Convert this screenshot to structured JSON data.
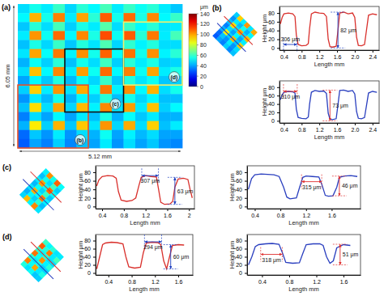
{
  "chart_data": [
    {
      "type": "heatmap",
      "panel": "(a)",
      "width_label": "5.12 mm",
      "height_label": "6.05 mm",
      "cells": [
        [
          48,
          55,
          50,
          60,
          47,
          58,
          52,
          62,
          50,
          60,
          54,
          58,
          50,
          45
        ],
        [
          52,
          98,
          55,
          105,
          50,
          100,
          58,
          110,
          55,
          108,
          56,
          104,
          52,
          60
        ],
        [
          45,
          58,
          48,
          62,
          46,
          56,
          50,
          64,
          48,
          60,
          52,
          58,
          49,
          50
        ],
        [
          50,
          102,
          54,
          108,
          52,
          104,
          56,
          112,
          54,
          110,
          58,
          106,
          50,
          62
        ],
        [
          44,
          56,
          47,
          60,
          45,
          57,
          49,
          63,
          47,
          59,
          51,
          57,
          48,
          48
        ],
        [
          49,
          100,
          53,
          106,
          51,
          103,
          55,
          109,
          53,
          107,
          55,
          103,
          51,
          58
        ],
        [
          42,
          54,
          46,
          58,
          44,
          55,
          48,
          61,
          46,
          58,
          50,
          56,
          46,
          47
        ],
        [
          48,
          96,
          52,
          104,
          50,
          101,
          54,
          108,
          52,
          105,
          54,
          100,
          50,
          56
        ],
        [
          40,
          52,
          45,
          57,
          43,
          54,
          47,
          60,
          45,
          57,
          49,
          54,
          45,
          46
        ],
        [
          46,
          94,
          50,
          102,
          49,
          99,
          53,
          106,
          51,
          103,
          52,
          98,
          48,
          55
        ],
        [
          38,
          50,
          43,
          55,
          42,
          52,
          46,
          58,
          44,
          55,
          47,
          52,
          44,
          44
        ],
        [
          44,
          92,
          48,
          100,
          47,
          97,
          51,
          104,
          49,
          101,
          50,
          96,
          46,
          52
        ],
        [
          35,
          48,
          40,
          52,
          40,
          50,
          44,
          56,
          42,
          53,
          45,
          50,
          42,
          42
        ],
        [
          42,
          90,
          46,
          98,
          45,
          95,
          49,
          102,
          47,
          99,
          48,
          94,
          44,
          50
        ],
        [
          32,
          45,
          38,
          50,
          38,
          48,
          42,
          54,
          40,
          51,
          43,
          48,
          40,
          40
        ],
        [
          30,
          40,
          35,
          46,
          36,
          44,
          40,
          50,
          38,
          48,
          40,
          45,
          38,
          36
        ]
      ],
      "colorbar": {
        "range": [
          0,
          140
        ],
        "ticks": [
          0,
          20,
          40,
          60,
          80,
          100,
          120,
          140
        ],
        "unit": "μm"
      },
      "regions": [
        {
          "label": "(b)",
          "cols": [
            0,
            5
          ],
          "rows": [
            9,
            15
          ],
          "color": "#e8502a"
        },
        {
          "label": "(c)",
          "cols": [
            4,
            8
          ],
          "rows": [
            5,
            11
          ],
          "color": "#111111"
        },
        {
          "label": "(d)",
          "cols": [
            9,
            13
          ],
          "rows": [
            2,
            8
          ],
          "color": "#f2ee6a"
        }
      ]
    },
    {
      "type": "line",
      "panel": "(b)",
      "x_label": "Length mm",
      "y_label": "Height μm",
      "color": "#d9302c",
      "xlim": [
        0.3,
        2.55
      ],
      "xticks": [
        0.4,
        0.8,
        1.2,
        1.6,
        {
          "value": 2,
          "label": "2.0"
        },
        2.4
      ],
      "ylim": [
        -5,
        95
      ],
      "yticks": [
        0,
        20,
        40,
        60,
        80
      ],
      "x": [
        0.32,
        0.36,
        0.4,
        0.5,
        0.6,
        0.65,
        0.68,
        0.72,
        0.8,
        0.9,
        0.95,
        0.98,
        1.02,
        1.1,
        1.2,
        1.3,
        1.36,
        1.4,
        1.44,
        1.5,
        1.58,
        1.62,
        1.66,
        1.75,
        1.85,
        1.95,
        2.0,
        2.04,
        2.08,
        2.15,
        2.22,
        2.27,
        2.31,
        2.4,
        2.5
      ],
      "values": [
        55,
        70,
        78,
        80,
        78,
        72,
        30,
        8,
        5,
        6,
        10,
        45,
        78,
        82,
        80,
        79,
        72,
        20,
        3,
        2,
        4,
        40,
        80,
        82,
        78,
        80,
        70,
        25,
        6,
        5,
        8,
        45,
        75,
        78,
        76
      ],
      "annotations": [
        {
          "text": "306 μm",
          "x": [
            0.39,
            0.696
          ],
          "y": 8,
          "color": "#2040c0"
        },
        {
          "text": "82 μm",
          "x": 1.62,
          "y": [
            0,
            82
          ],
          "color": "#2040c0"
        }
      ]
    },
    {
      "type": "line",
      "x_label": "Length mm",
      "y_label": "Height μm",
      "color": "#2a3fbf",
      "xlim": [
        0.3,
        2.55
      ],
      "xticks": [
        0.4,
        0.8,
        1.2,
        1.6,
        {
          "value": 2,
          "label": "2.0"
        },
        2.4
      ],
      "ylim": [
        -5,
        95
      ],
      "yticks": [
        0,
        20,
        40,
        60,
        80
      ],
      "x": [
        0.32,
        0.36,
        0.4,
        0.5,
        0.6,
        0.65,
        0.68,
        0.72,
        0.8,
        0.9,
        0.95,
        0.98,
        1.02,
        1.1,
        1.2,
        1.3,
        1.36,
        1.4,
        1.44,
        1.5,
        1.58,
        1.62,
        1.66,
        1.75,
        1.85,
        1.95,
        2.0,
        2.04,
        2.08,
        2.15,
        2.22,
        2.27,
        2.31,
        2.4,
        2.5
      ],
      "values": [
        50,
        62,
        68,
        70,
        69,
        66,
        28,
        8,
        6,
        5,
        9,
        40,
        68,
        72,
        70,
        71,
        65,
        18,
        4,
        3,
        5,
        38,
        72,
        73,
        70,
        72,
        64,
        22,
        6,
        5,
        8,
        40,
        66,
        70,
        68
      ],
      "annotations": [
        {
          "text": "310 μm",
          "x": [
            0.39,
            0.7
          ],
          "y": 70,
          "color": "#e03030"
        },
        {
          "text": "73 μm",
          "x": 1.44,
          "y": [
            0,
            73
          ],
          "color": "#e03030"
        }
      ]
    },
    {
      "type": "line",
      "panel": "(c)",
      "x_label": "Length mm",
      "y_label": "Height μm",
      "color": "#d9302c",
      "xlim": [
        0.28,
        2.1
      ],
      "xticks": [
        0.4,
        0.8,
        1.2,
        1.6,
        2
      ],
      "ylim": [
        -5,
        95
      ],
      "yticks": [
        0,
        20,
        40,
        60,
        80
      ],
      "x": [
        0.3,
        0.34,
        0.4,
        0.5,
        0.6,
        0.66,
        0.7,
        0.75,
        0.85,
        0.95,
        1.02,
        1.08,
        1.12,
        1.2,
        1.3,
        1.4,
        1.44,
        1.48,
        1.55,
        1.65,
        1.7,
        1.74,
        1.8,
        1.9,
        1.98,
        2.02,
        2.06
      ],
      "values": [
        48,
        62,
        70,
        72,
        71,
        66,
        35,
        15,
        12,
        14,
        20,
        50,
        68,
        72,
        70,
        69,
        40,
        10,
        5,
        6,
        12,
        45,
        64,
        66,
        63,
        40,
        20
      ],
      "annotations": [
        {
          "text": "307 μm",
          "x": [
            1.13,
            1.437
          ],
          "y": 72,
          "color": "#2040c0"
        },
        {
          "text": "63 μm",
          "x": 1.74,
          "y": [
            5,
            68
          ],
          "color": "#2040c0"
        }
      ]
    },
    {
      "type": "line",
      "x_label": "Length mm",
      "y_label": "Height μm",
      "color": "#2a3fbf",
      "xlim": [
        0.28,
        2.05
      ],
      "xticks": [
        0.4,
        0.8,
        1.2,
        1.6
      ],
      "ylim": [
        -5,
        95
      ],
      "yticks": [
        0,
        20,
        40,
        60,
        80
      ],
      "x": [
        0.3,
        0.35,
        0.4,
        0.5,
        0.6,
        0.7,
        0.78,
        0.85,
        0.9,
        0.95,
        1.05,
        1.1,
        1.15,
        1.2,
        1.3,
        1.4,
        1.45,
        1.5,
        1.55,
        1.62,
        1.68,
        1.72,
        1.8,
        1.9,
        2.0
      ],
      "values": [
        40,
        65,
        74,
        76,
        75,
        74,
        70,
        45,
        22,
        18,
        20,
        45,
        68,
        71,
        70,
        69,
        50,
        26,
        24,
        25,
        45,
        68,
        71,
        72,
        70
      ],
      "annotations": [
        {
          "text": "315 μm",
          "x": [
            1.13,
            1.445
          ],
          "y": 58,
          "color": "#e03030"
        },
        {
          "text": "46 μm",
          "x": 1.72,
          "y": [
            25,
            71
          ],
          "color": "#e03030"
        }
      ]
    },
    {
      "type": "line",
      "panel": "(d)",
      "x_label": "Length mm",
      "y_label": "Height μm",
      "color": "#d9302c",
      "xlim": [
        0.18,
        1.85
      ],
      "xticks": [
        0.4,
        0.8,
        1.2,
        1.6
      ],
      "ylim": [
        -5,
        95
      ],
      "yticks": [
        0,
        20,
        40,
        60,
        80
      ],
      "x": [
        0.2,
        0.25,
        0.3,
        0.35,
        0.45,
        0.55,
        0.65,
        0.7,
        0.75,
        0.85,
        0.95,
        1.0,
        1.05,
        1.15,
        1.25,
        1.3,
        1.35,
        1.4,
        1.45,
        1.5,
        1.6,
        1.7
      ],
      "values": [
        10,
        40,
        70,
        74,
        76,
        75,
        72,
        40,
        15,
        12,
        14,
        50,
        74,
        76,
        75,
        70,
        30,
        10,
        40,
        68,
        70,
        69
      ],
      "annotations": [
        {
          "text": "294 μm",
          "x": [
            1.02,
            1.314
          ],
          "y": 77,
          "color": "#2040c0"
        },
        {
          "text": "60 μm",
          "x": 1.47,
          "y": [
            10,
            70
          ],
          "color": "#2040c0"
        }
      ]
    },
    {
      "type": "line",
      "x_label": "Length mm",
      "y_label": "Height μm",
      "color": "#2a3fbf",
      "xlim": [
        0.18,
        1.85
      ],
      "xticks": [
        0.4,
        0.8,
        1.2,
        1.6
      ],
      "ylim": [
        -5,
        95
      ],
      "yticks": [
        0,
        20,
        40,
        60,
        80
      ],
      "x": [
        0.2,
        0.25,
        0.3,
        0.35,
        0.45,
        0.55,
        0.65,
        0.7,
        0.75,
        0.85,
        0.95,
        1.0,
        1.05,
        1.15,
        1.25,
        1.3,
        1.35,
        1.4,
        1.45,
        1.5,
        1.6,
        1.7
      ],
      "values": [
        20,
        40,
        65,
        70,
        72,
        73,
        71,
        50,
        26,
        24,
        25,
        48,
        70,
        72,
        72,
        68,
        40,
        24,
        30,
        62,
        70,
        68
      ],
      "annotations": [
        {
          "text": "318 μm",
          "x": [
            0.38,
            0.698
          ],
          "y": 46,
          "color": "#e03030"
        },
        {
          "text": "51 μm",
          "x": 1.55,
          "y": [
            20,
            71
          ],
          "color": "#e03030"
        }
      ]
    }
  ]
}
